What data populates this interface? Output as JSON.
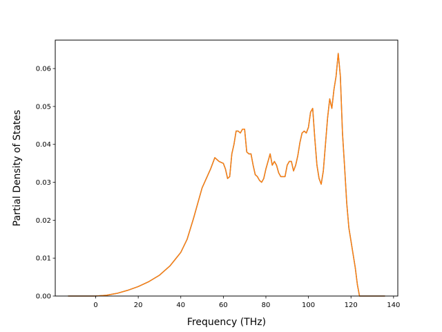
{
  "chart_data": {
    "type": "line",
    "title": "",
    "xlabel": "Frequency (THz)",
    "ylabel": "Partial Density of States",
    "xlim": [
      -19,
      142
    ],
    "ylim": [
      0,
      0.0675
    ],
    "xticks": [
      0,
      20,
      40,
      60,
      80,
      100,
      120,
      140
    ],
    "yticks": [
      0.0,
      0.01,
      0.02,
      0.03,
      0.04,
      0.05,
      0.06
    ],
    "ytick_labels": [
      "0.00",
      "0.01",
      "0.02",
      "0.03",
      "0.04",
      "0.05",
      "0.06"
    ],
    "grid": false,
    "legend": "none",
    "series": [
      {
        "color": "#1f77b4",
        "x": [
          -13,
          0,
          5,
          10,
          15,
          20,
          25,
          30,
          35,
          40,
          43,
          46,
          48,
          50,
          52,
          54,
          56,
          58,
          60,
          61,
          62,
          63,
          64,
          65,
          66,
          67,
          68,
          69,
          70,
          71,
          72,
          73,
          74,
          75,
          76,
          77,
          78,
          79,
          80,
          81,
          82,
          83,
          84,
          85,
          86,
          87,
          88,
          89,
          90,
          91,
          92,
          93,
          94,
          95,
          96,
          97,
          98,
          99,
          100,
          101,
          102,
          103,
          104,
          105,
          106,
          107,
          108,
          109,
          110,
          111,
          112,
          113,
          114,
          115,
          116,
          117,
          118,
          119,
          120,
          121,
          122,
          123,
          124,
          125,
          130,
          136
        ],
        "values": [
          0.0,
          0.0,
          0.0002,
          0.0007,
          0.0015,
          0.0025,
          0.0038,
          0.0055,
          0.008,
          0.0115,
          0.015,
          0.0205,
          0.0245,
          0.0285,
          0.031,
          0.0335,
          0.0365,
          0.0355,
          0.035,
          0.0335,
          0.031,
          0.0315,
          0.0375,
          0.04,
          0.0435,
          0.0435,
          0.043,
          0.044,
          0.044,
          0.038,
          0.0375,
          0.0375,
          0.0345,
          0.032,
          0.0315,
          0.0305,
          0.03,
          0.031,
          0.0335,
          0.0355,
          0.0375,
          0.0345,
          0.0355,
          0.0345,
          0.0325,
          0.0315,
          0.0315,
          0.0315,
          0.0345,
          0.0355,
          0.0355,
          0.033,
          0.0345,
          0.037,
          0.0405,
          0.043,
          0.0435,
          0.043,
          0.0445,
          0.0485,
          0.0495,
          0.0415,
          0.0345,
          0.031,
          0.0295,
          0.033,
          0.04,
          0.047,
          0.052,
          0.0495,
          0.0545,
          0.058,
          0.064,
          0.058,
          0.043,
          0.034,
          0.0245,
          0.018,
          0.0145,
          0.011,
          0.0075,
          0.003,
          0.0,
          0.0,
          0.0,
          0.0
        ]
      },
      {
        "color": "#ff7f0e",
        "x": [
          -13,
          0,
          5,
          10,
          15,
          20,
          25,
          30,
          35,
          40,
          43,
          46,
          48,
          50,
          52,
          54,
          56,
          58,
          60,
          61,
          62,
          63,
          64,
          65,
          66,
          67,
          68,
          69,
          70,
          71,
          72,
          73,
          74,
          75,
          76,
          77,
          78,
          79,
          80,
          81,
          82,
          83,
          84,
          85,
          86,
          87,
          88,
          89,
          90,
          91,
          92,
          93,
          94,
          95,
          96,
          97,
          98,
          99,
          100,
          101,
          102,
          103,
          104,
          105,
          106,
          107,
          108,
          109,
          110,
          111,
          112,
          113,
          114,
          115,
          116,
          117,
          118,
          119,
          120,
          121,
          122,
          123,
          124,
          125,
          130,
          136
        ],
        "values": [
          0.0,
          0.0,
          0.0002,
          0.0007,
          0.0015,
          0.0025,
          0.0038,
          0.0055,
          0.008,
          0.0115,
          0.015,
          0.0205,
          0.0245,
          0.0285,
          0.031,
          0.0335,
          0.0365,
          0.0355,
          0.035,
          0.0335,
          0.031,
          0.0315,
          0.0375,
          0.04,
          0.0435,
          0.0435,
          0.043,
          0.044,
          0.044,
          0.038,
          0.0375,
          0.0375,
          0.0345,
          0.032,
          0.0315,
          0.0305,
          0.03,
          0.031,
          0.0335,
          0.0355,
          0.0375,
          0.0345,
          0.0355,
          0.0345,
          0.0325,
          0.0315,
          0.0315,
          0.0315,
          0.0345,
          0.0355,
          0.0355,
          0.033,
          0.0345,
          0.037,
          0.0405,
          0.043,
          0.0435,
          0.043,
          0.0445,
          0.0485,
          0.0495,
          0.0415,
          0.0345,
          0.031,
          0.0295,
          0.033,
          0.04,
          0.047,
          0.052,
          0.0495,
          0.0545,
          0.058,
          0.064,
          0.058,
          0.043,
          0.034,
          0.0245,
          0.018,
          0.0145,
          0.011,
          0.0075,
          0.003,
          0.0,
          0.0,
          0.0,
          0.0
        ]
      }
    ]
  }
}
